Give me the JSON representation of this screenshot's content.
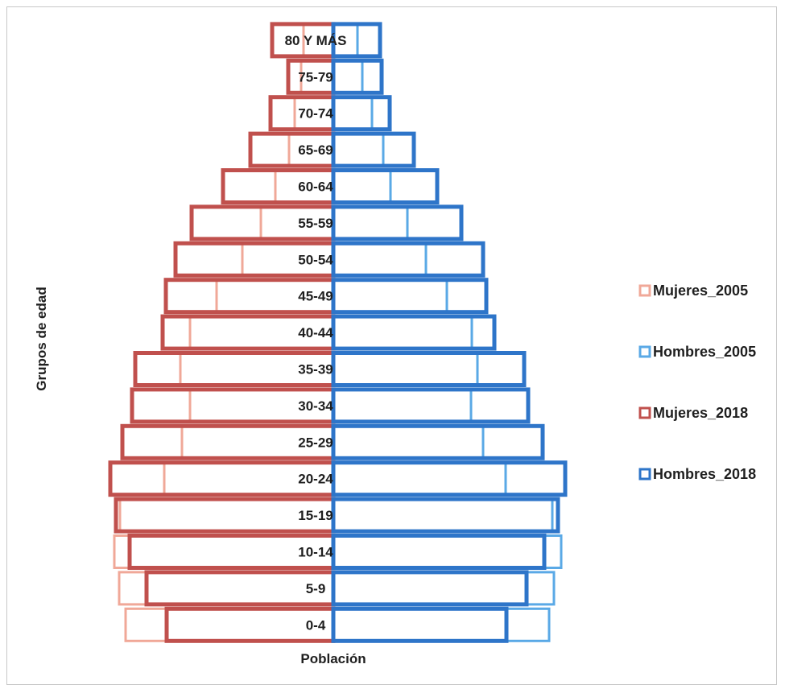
{
  "chart_data": {
    "type": "bar",
    "subtype": "population-pyramid",
    "xlabel": "Población",
    "ylabel": "Grupos de edad",
    "categories": [
      "0-4",
      "5-9",
      "10-14",
      "15-19",
      "20-24",
      "25-29",
      "30-34",
      "35-39",
      "40-44",
      "45-49",
      "50-54",
      "55-59",
      "60-64",
      "65-69",
      "70-74",
      "75-79",
      "80 Y MÁS"
    ],
    "series": [
      {
        "name": "Mujeres_2005",
        "side": "left",
        "color": "#f0a898",
        "stroke_width": 3,
        "values": [
          258,
          266,
          272,
          265,
          210,
          188,
          178,
          190,
          178,
          145,
          113,
          90,
          72,
          55,
          48,
          40,
          37
        ]
      },
      {
        "name": "Hombres_2005",
        "side": "right",
        "color": "#5aa9e6",
        "stroke_width": 3,
        "values": [
          268,
          274,
          283,
          272,
          214,
          186,
          171,
          179,
          172,
          141,
          115,
          92,
          71,
          62,
          48,
          36,
          30
        ]
      },
      {
        "name": "Mujeres_2018",
        "side": "left",
        "color": "#c0504d",
        "stroke_width": 5,
        "values": [
          207,
          232,
          253,
          270,
          277,
          262,
          250,
          246,
          212,
          208,
          196,
          176,
          137,
          103,
          78,
          56,
          76
        ]
      },
      {
        "name": "Hombres_2018",
        "side": "right",
        "color": "#2e75c9",
        "stroke_width": 5,
        "values": [
          215,
          240,
          262,
          279,
          288,
          260,
          242,
          237,
          200,
          190,
          186,
          159,
          129,
          100,
          70,
          60,
          58
        ]
      }
    ],
    "grid": false,
    "legend_position": "right"
  },
  "legend": [
    {
      "label": "Mujeres_2005",
      "color": "#f0a898"
    },
    {
      "label": "Hombres_2005",
      "color": "#5aa9e6"
    },
    {
      "label": "Mujeres_2018",
      "color": "#c0504d"
    },
    {
      "label": "Hombres_2018",
      "color": "#2e75c9"
    }
  ]
}
